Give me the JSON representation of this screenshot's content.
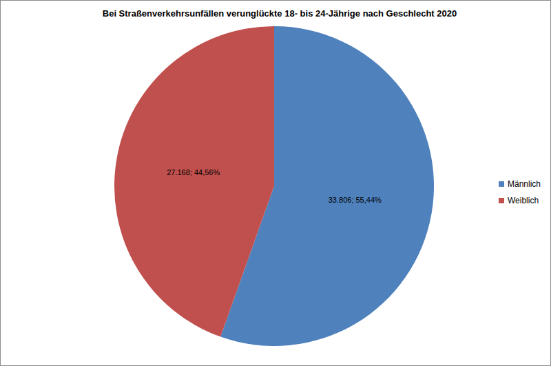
{
  "chart_data": {
    "type": "pie",
    "title": "Bei Straßenverkehrsunfällen verunglückte 18- bis 24-Jährige nach Geschlecht 2020",
    "categories": [
      "Männlich",
      "Weiblich"
    ],
    "values": [
      33806,
      27168
    ],
    "value_labels": [
      "33.806; 55,44%",
      "27.168; 44,56%"
    ],
    "colors": [
      "#4f81bd",
      "#c0504d"
    ],
    "data_labels": true,
    "legend": "right"
  }
}
